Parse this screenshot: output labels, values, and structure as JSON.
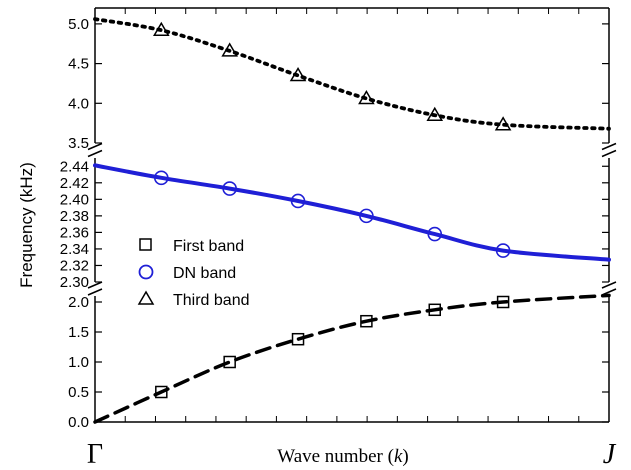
{
  "chart_data": {
    "type": "line",
    "title": "",
    "xlabel_prefix": "Wave number (",
    "xlabel_var": "k",
    "xlabel_suffix": ")",
    "ylabel": "Frequency (kHz)",
    "x_tick_labels": {
      "start": "Γ",
      "end": "J"
    },
    "x_range": [
      0,
      1
    ],
    "panels": {
      "top": {
        "ylim": [
          3.5,
          5.2
        ],
        "ticks": [
          "3.5",
          "4.0",
          "4.5",
          "5.0"
        ]
      },
      "middle": {
        "ylim": [
          2.3,
          2.45
        ],
        "ticks": [
          "2.30",
          "2.32",
          "2.34",
          "2.36",
          "2.38",
          "2.40",
          "2.42",
          "2.44"
        ]
      },
      "bottom": {
        "ylim": [
          0.0,
          2.1
        ],
        "ticks": [
          "0.0",
          "0.5",
          "1.0",
          "1.5",
          "2.0"
        ]
      }
    },
    "series": [
      {
        "name": "First band",
        "panel": "bottom",
        "marker": "square",
        "line_style": "dashed",
        "color": "#000000",
        "marker_x": [
          0.129,
          0.262,
          0.395,
          0.528,
          0.661,
          0.794
        ],
        "marker_y": [
          0.5,
          1.0,
          1.38,
          1.68,
          1.87,
          2.0
        ],
        "curve_x": [
          0.0,
          0.129,
          0.262,
          0.395,
          0.528,
          0.661,
          0.794,
          1.0
        ],
        "curve_y": [
          0.0,
          0.5,
          1.0,
          1.38,
          1.68,
          1.87,
          2.0,
          2.11
        ]
      },
      {
        "name": "DN band",
        "panel": "middle",
        "marker": "circle",
        "line_style": "solid",
        "color": "#1f1fd6",
        "marker_x": [
          0.129,
          0.262,
          0.395,
          0.528,
          0.661,
          0.794
        ],
        "marker_y": [
          2.426,
          2.413,
          2.398,
          2.38,
          2.358,
          2.338
        ],
        "curve_x": [
          0.0,
          0.129,
          0.262,
          0.395,
          0.528,
          0.661,
          0.794,
          1.0
        ],
        "curve_y": [
          2.441,
          2.426,
          2.413,
          2.398,
          2.38,
          2.358,
          2.338,
          2.327
        ]
      },
      {
        "name": "Third band",
        "panel": "top",
        "marker": "triangle",
        "line_style": "dotted",
        "color": "#000000",
        "marker_x": [
          0.129,
          0.262,
          0.395,
          0.528,
          0.661,
          0.794
        ],
        "marker_y": [
          4.92,
          4.66,
          4.35,
          4.06,
          3.85,
          3.73
        ],
        "curve_x": [
          0.0,
          0.129,
          0.262,
          0.395,
          0.528,
          0.661,
          0.794,
          1.0
        ],
        "curve_y": [
          5.06,
          4.92,
          4.66,
          4.35,
          4.06,
          3.85,
          3.73,
          3.68
        ]
      }
    ],
    "legend_position": "left-center"
  }
}
